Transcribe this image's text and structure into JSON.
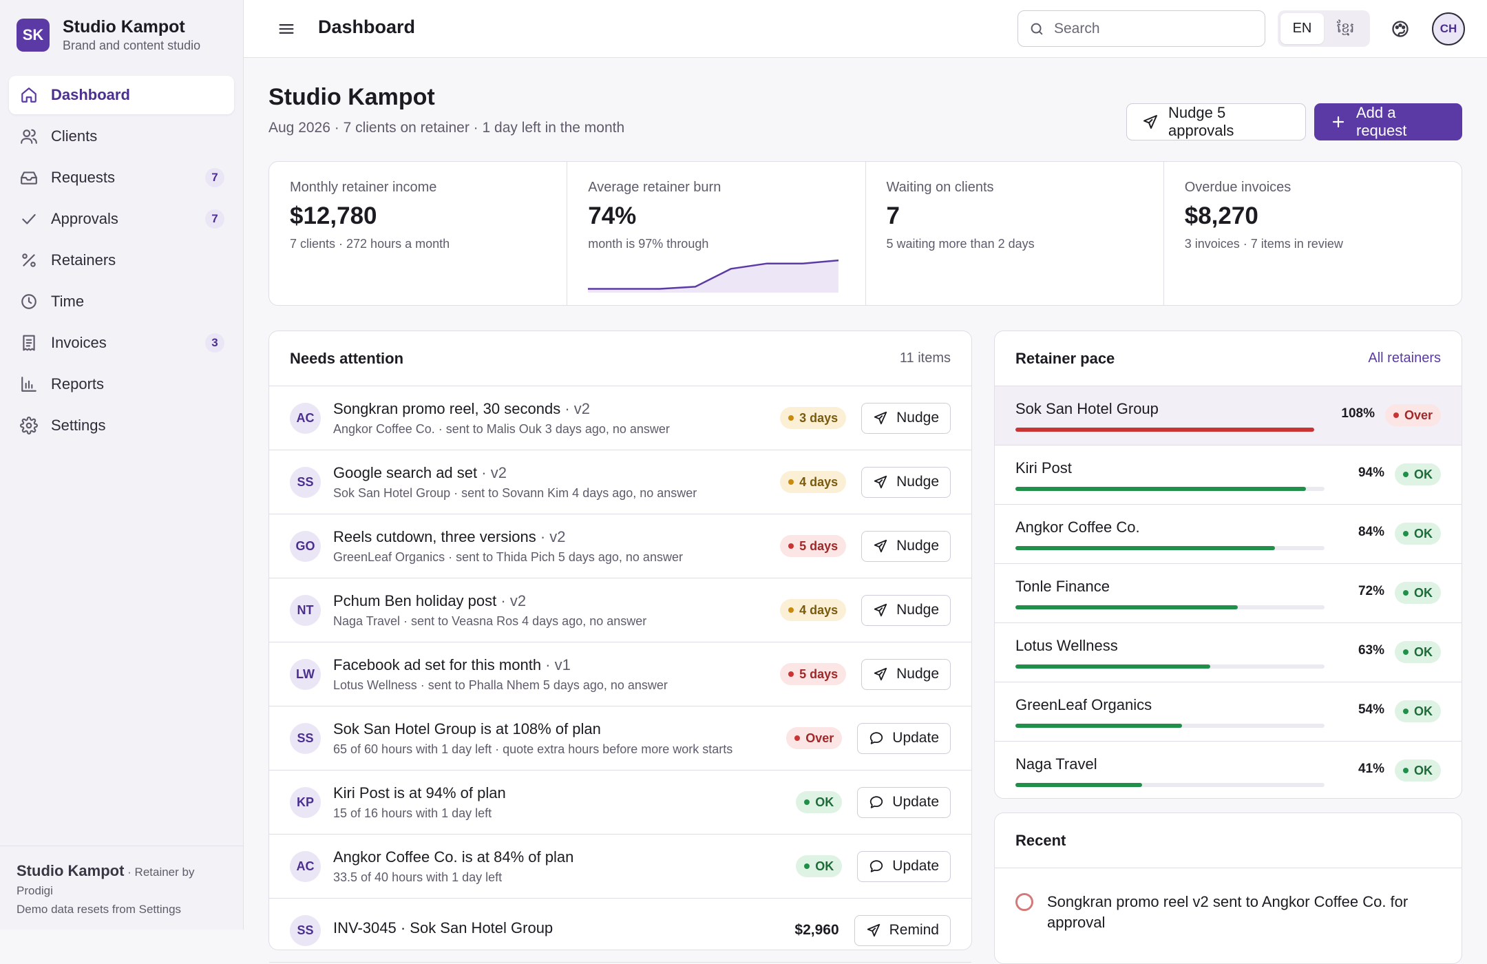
{
  "brand": {
    "logo": "SK",
    "name": "Studio Kampot",
    "subtitle": "Brand and content studio"
  },
  "nav": [
    {
      "label": "Dashboard",
      "icon": "home-icon",
      "active": true,
      "badge": ""
    },
    {
      "label": "Clients",
      "icon": "users-icon",
      "active": false,
      "badge": ""
    },
    {
      "label": "Requests",
      "icon": "inbox-icon",
      "active": false,
      "badge": "7"
    },
    {
      "label": "Approvals",
      "icon": "check-icon",
      "active": false,
      "badge": "7"
    },
    {
      "label": "Retainers",
      "icon": "percent-icon",
      "active": false,
      "badge": ""
    },
    {
      "label": "Time",
      "icon": "clock-icon",
      "active": false,
      "badge": ""
    },
    {
      "label": "Invoices",
      "icon": "receipt-icon",
      "active": false,
      "badge": "3"
    },
    {
      "label": "Reports",
      "icon": "bar-chart-icon",
      "active": false,
      "badge": ""
    },
    {
      "label": "Settings",
      "icon": "gear-icon",
      "active": false,
      "badge": ""
    }
  ],
  "footer": {
    "brand": "Studio Kampot",
    "by": " · Retainer by Prodigi",
    "note": "Demo data resets from Settings"
  },
  "topbar": {
    "title": "Dashboard",
    "search_placeholder": "Search",
    "lang_en": "EN",
    "lang_km": "ខ្មែរ",
    "avatar": "CH"
  },
  "page": {
    "title": "Studio Kampot",
    "subtitle": "Aug 2026 · 7 clients on retainer · 1 day left in the month",
    "nudge_all_label": "Nudge 5 approvals",
    "add_label": "Add a request"
  },
  "stats": [
    {
      "label": "Monthly retainer income",
      "value": "$12,780",
      "note": "7 clients · 272 hours a month"
    },
    {
      "label": "Average retainer burn",
      "value": "74%",
      "note": "month is 97% through"
    },
    {
      "label": "Waiting on clients",
      "value": "7",
      "note": "5 waiting more than 2 days"
    },
    {
      "label": "Overdue invoices",
      "value": "$8,270",
      "note": "3 invoices · 7 items in review"
    }
  ],
  "burn_trend": [
    0.02,
    0.02,
    0.02,
    0.06,
    0.4,
    0.5,
    0.5,
    0.56
  ],
  "attention": {
    "title": "Needs attention",
    "count": "11 items",
    "rows": [
      {
        "initials": "AC",
        "title": "Songkran promo reel, 30 seconds",
        "version": " · v2",
        "sub": "Angkor Coffee Co. · sent to Malis Ouk 3 days ago, no answer",
        "status": "3 days",
        "tone": "warn",
        "action": "Nudge",
        "action_icon": "send-icon"
      },
      {
        "initials": "SS",
        "title": "Google search ad set",
        "version": " · v2",
        "sub": "Sok San Hotel Group · sent to Sovann Kim 4 days ago, no answer",
        "status": "4 days",
        "tone": "warn",
        "action": "Nudge",
        "action_icon": "send-icon"
      },
      {
        "initials": "GO",
        "title": "Reels cutdown, three versions",
        "version": " · v2",
        "sub": "GreenLeaf Organics · sent to Thida Pich 5 days ago, no answer",
        "status": "5 days",
        "tone": "bad",
        "action": "Nudge",
        "action_icon": "send-icon"
      },
      {
        "initials": "NT",
        "title": "Pchum Ben holiday post",
        "version": " · v2",
        "sub": "Naga Travel · sent to Veasna Ros 4 days ago, no answer",
        "status": "4 days",
        "tone": "warn",
        "action": "Nudge",
        "action_icon": "send-icon"
      },
      {
        "initials": "LW",
        "title": "Facebook ad set for this month",
        "version": " · v1",
        "sub": "Lotus Wellness · sent to Phalla Nhem 5 days ago, no answer",
        "status": "5 days",
        "tone": "bad",
        "action": "Nudge",
        "action_icon": "send-icon"
      },
      {
        "initials": "SS",
        "title": "Sok San Hotel Group is at 108% of plan",
        "version": "",
        "sub": "65 of 60 hours with 1 day left · quote extra hours before more work starts",
        "status": "Over",
        "tone": "bad",
        "action": "Update",
        "action_icon": "message-icon"
      },
      {
        "initials": "KP",
        "title": "Kiri Post is at 94% of plan",
        "version": "",
        "sub": "15 of 16 hours with 1 day left",
        "status": "OK",
        "tone": "ok",
        "action": "Update",
        "action_icon": "message-icon"
      },
      {
        "initials": "AC",
        "title": "Angkor Coffee Co. is at 84% of plan",
        "version": "",
        "sub": "33.5 of 40 hours with 1 day left",
        "status": "OK",
        "tone": "ok",
        "action": "Update",
        "action_icon": "message-icon"
      },
      {
        "initials": "SS",
        "title": "INV-3045 · Sok San Hotel Group",
        "version": "",
        "sub": "",
        "status": "$2,960",
        "tone": "plain",
        "action": "Remind",
        "action_icon": "send-icon"
      }
    ]
  },
  "pace": {
    "title": "Retainer pace",
    "link": "All retainers",
    "rows": [
      {
        "name": "Sok San Hotel Group",
        "pct_label": "108%",
        "pct": 108,
        "status": "Over",
        "tone": "bad"
      },
      {
        "name": "Kiri Post",
        "pct_label": "94%",
        "pct": 94,
        "status": "OK",
        "tone": "ok"
      },
      {
        "name": "Angkor Coffee Co.",
        "pct_label": "84%",
        "pct": 84,
        "status": "OK",
        "tone": "ok"
      },
      {
        "name": "Tonle Finance",
        "pct_label": "72%",
        "pct": 72,
        "status": "OK",
        "tone": "ok"
      },
      {
        "name": "Lotus Wellness",
        "pct_label": "63%",
        "pct": 63,
        "status": "OK",
        "tone": "ok"
      },
      {
        "name": "GreenLeaf Organics",
        "pct_label": "54%",
        "pct": 54,
        "status": "OK",
        "tone": "ok"
      },
      {
        "name": "Naga Travel",
        "pct_label": "41%",
        "pct": 41,
        "status": "OK",
        "tone": "ok"
      }
    ]
  },
  "recent": {
    "title": "Recent",
    "items": [
      {
        "text": "Songkran promo reel v2 sent to Angkor Coffee Co. for approval"
      }
    ]
  },
  "colors": {
    "accent": "#5b3aa6",
    "ok": "#1f8f4a",
    "warn": "#c98a0d",
    "bad": "#c93434"
  }
}
